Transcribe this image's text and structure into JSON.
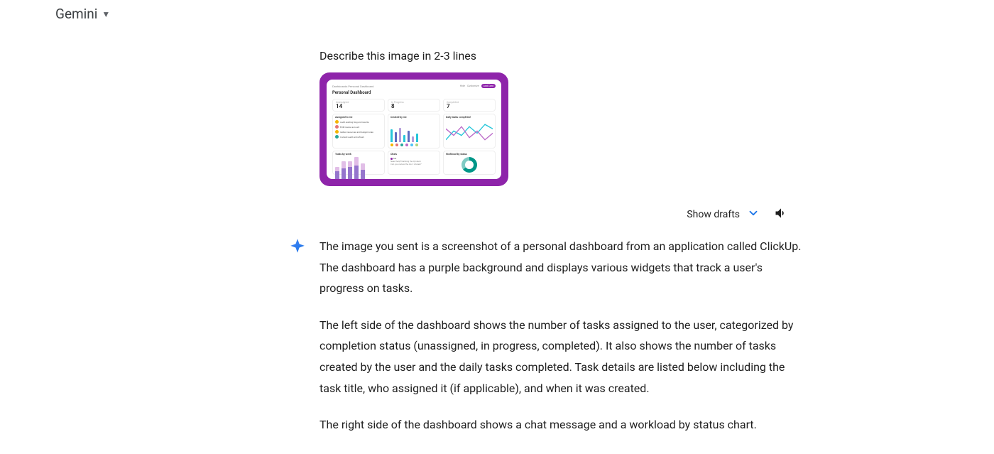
{
  "header": {
    "brand": "Gemini"
  },
  "conversation": {
    "prompt": "Describe this image in 2-3 lines",
    "attachment": {
      "frame_color": "#8e24aa",
      "dashboard": {
        "breadcrumb": "Dashboards   Personal Dashboard",
        "title": "Personal Dashboard",
        "top_right": {
          "hide": "Hide",
          "customize": "Customize",
          "add_card": "Add Card"
        },
        "kpis": [
          {
            "label": "Unassigned",
            "value": "14"
          },
          {
            "label": "In Progress",
            "value": "8"
          },
          {
            "label": "Completed",
            "value": "7"
          }
        ],
        "panels": {
          "assigned": {
            "title": "Assigned to me",
            "rows": [
              {
                "avatar_color": "#f4b400",
                "text": "Audit existing blog and rewrite"
              },
              {
                "avatar_color": "#e57373",
                "text": "EOM review account"
              },
              {
                "avatar_color": "#f4b400",
                "text": "Gather resources and budget notes"
              },
              {
                "avatar_color": "#26a69a",
                "text": "Content audit and refresh"
              }
            ]
          },
          "created": {
            "title": "Created by me",
            "bars": [
              {
                "h": 18,
                "c": "#26c6da"
              },
              {
                "h": 14,
                "c": "#5c6bc0"
              },
              {
                "h": 20,
                "c": "#b39ddb"
              },
              {
                "h": 10,
                "c": "#26c6da"
              },
              {
                "h": 16,
                "c": "#5c6bc0"
              },
              {
                "h": 8,
                "c": "#b39ddb"
              },
              {
                "h": 12,
                "c": "#26c6da"
              }
            ],
            "avatars": [
              "#f4b400",
              "#e57373",
              "#26a69a",
              "#ba68c8",
              "#4fc3f7",
              "#aed581"
            ]
          },
          "daily": {
            "title": "Daily tasks completed",
            "stroke1": "#26c6da",
            "stroke2": "#ba68c8"
          },
          "tasks_by_week": {
            "title": "Tasks by week",
            "cols": [
              {
                "a": 6,
                "b": 14,
                "ca": "#e1bee7",
                "cb": "#9575cd"
              },
              {
                "a": 10,
                "b": 18,
                "ca": "#e1bee7",
                "cb": "#9575cd"
              },
              {
                "a": 8,
                "b": 20,
                "ca": "#e1bee7",
                "cb": "#9575cd"
              },
              {
                "a": 12,
                "b": 22,
                "ca": "#e1bee7",
                "cb": "#9575cd"
              },
              {
                "a": 9,
                "b": 16,
                "ca": "#e1bee7",
                "cb": "#9575cd"
              }
            ]
          },
          "chats": {
            "title": "Chats",
            "legend_items": [
              {
                "c": "#8e24aa",
                "t": "Me"
              }
            ],
            "lines": [
              "Need help finalizing the Q4 deck",
              "Can you review the doc I shared?"
            ]
          },
          "workload": {
            "title": "Workload by status",
            "donut": {
              "a_color": "#009688",
              "b_color": "#80cbc4",
              "a_pct": 65
            }
          }
        }
      }
    },
    "actions": {
      "show_drafts": "Show drafts"
    },
    "response": {
      "p1": "The image you sent is a screenshot of a personal dashboard from an application called ClickUp. The dashboard has a purple background and displays various widgets that track a user's progress on tasks.",
      "p2": "The left side of the dashboard shows the number of tasks assigned to the user, categorized by completion status (unassigned, in progress, completed). It also shows the number of tasks created by the user and the daily tasks completed. Task details are listed below including the task title, who assigned it (if applicable), and when it was created.",
      "p3": "The right side of the dashboard shows a chat message and a workload by status chart."
    }
  },
  "colors": {
    "spark_a": "#4285f4",
    "spark_b": "#1a73e8",
    "chevron": "#1a73e8"
  }
}
